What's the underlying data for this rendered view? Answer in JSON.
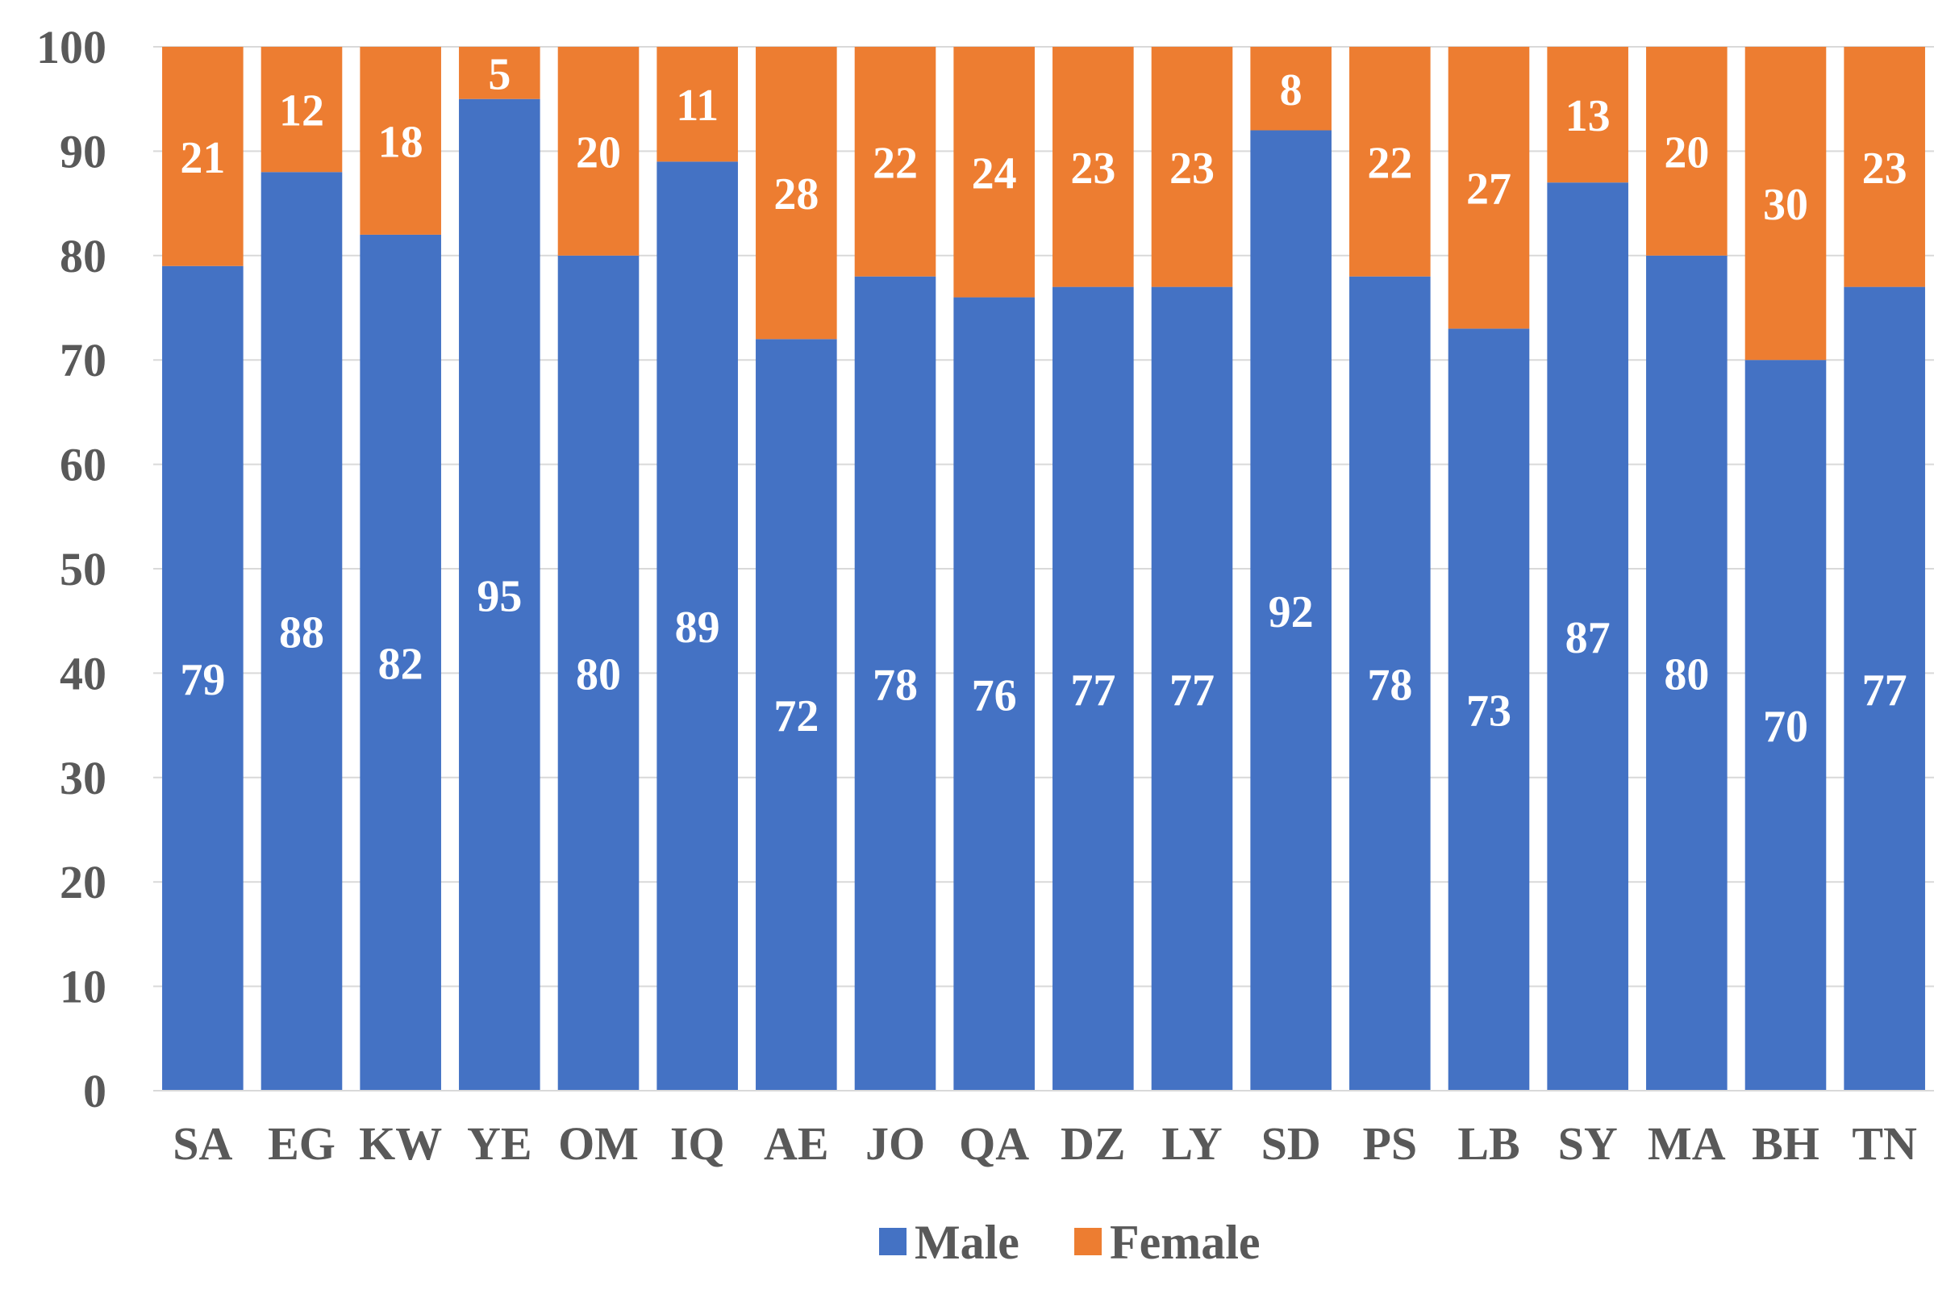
{
  "chart_data": {
    "type": "bar",
    "stacked": true,
    "title": "",
    "xlabel": "",
    "ylabel": "",
    "ylim": [
      0,
      100
    ],
    "yticks": [
      0,
      10,
      20,
      30,
      40,
      50,
      60,
      70,
      80,
      90,
      100
    ],
    "grid": true,
    "legend_position": "bottom",
    "categories": [
      "SA",
      "EG",
      "KW",
      "YE",
      "OM",
      "IQ",
      "AE",
      "JO",
      "QA",
      "DZ",
      "LY",
      "SD",
      "PS",
      "LB",
      "SY",
      "MA",
      "BH",
      "TN"
    ],
    "series": [
      {
        "name": "Male",
        "color": "#4472C4",
        "values": [
          79,
          88,
          82,
          95,
          80,
          89,
          72,
          78,
          76,
          77,
          77,
          92,
          78,
          73,
          87,
          80,
          70,
          77
        ]
      },
      {
        "name": "Female",
        "color": "#ED7D31",
        "values": [
          21,
          12,
          18,
          5,
          20,
          11,
          28,
          22,
          24,
          23,
          23,
          8,
          22,
          27,
          13,
          20,
          30,
          23
        ]
      }
    ]
  }
}
